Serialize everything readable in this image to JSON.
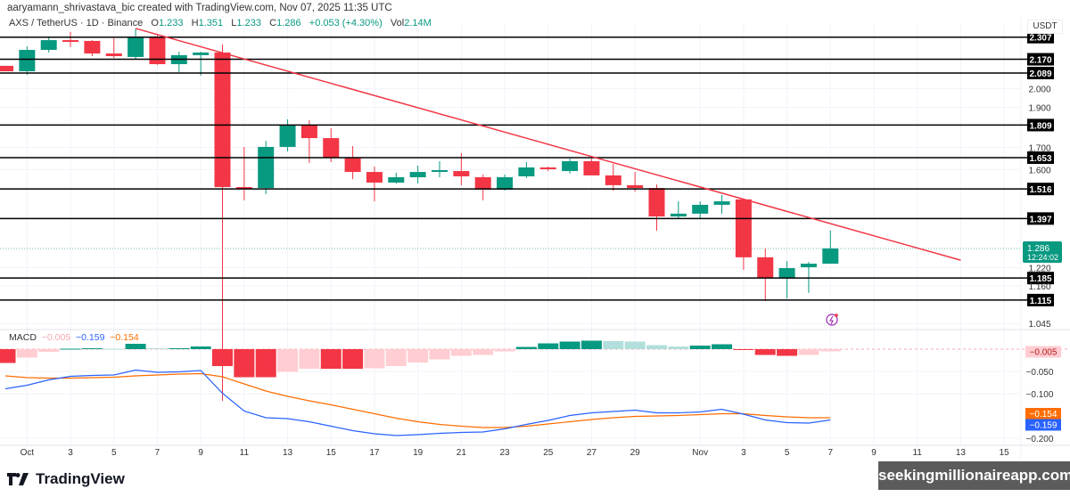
{
  "attribution": "aaryamann_shrivastava_bic created with TradingView.com, Nov 07, 2025 11:35 UTC",
  "legend": {
    "symbol": "AXS / TetherUS · 1D · Binance",
    "o_label": "O",
    "o": "1.233",
    "h_label": "H",
    "h": "1.351",
    "l_label": "L",
    "l": "1.233",
    "c_label": "C",
    "c": "1.286",
    "change": "+0.053 (+4.30%)",
    "vol_label": "Vol",
    "vol": "2.14M"
  },
  "currency": "USDT",
  "current_price": {
    "value": "1.286",
    "countdown": "12:24:02"
  },
  "macd_legend": {
    "label": "MACD",
    "hist": "−0.005",
    "macd": "−0.159",
    "signal": "−0.154"
  },
  "footer": {
    "brand": "TradingView",
    "watermark": "seekingmillionaireapp.com"
  },
  "colors": {
    "up": "#089981",
    "down": "#f23645",
    "up_light": "#b2dfdb",
    "down_light": "#ffcdd2",
    "trendline": "#f23645",
    "macd": "#2962ff",
    "signal": "#ff6d00",
    "level": "#000000"
  },
  "chart_data": [
    {
      "type": "candlestick",
      "scale": "log",
      "dates": [
        "Sep 30",
        "Oct 1",
        "Oct 2",
        "Oct 3",
        "Oct 4",
        "Oct 5",
        "Oct 6",
        "Oct 7",
        "Oct 8",
        "Oct 9",
        "Oct 10",
        "Oct 11",
        "Oct 12",
        "Oct 13",
        "Oct 14",
        "Oct 15",
        "Oct 16",
        "Oct 17",
        "Oct 18",
        "Oct 19",
        "Oct 20",
        "Oct 21",
        "Oct 22",
        "Oct 23",
        "Oct 24",
        "Oct 25",
        "Oct 26",
        "Oct 27",
        "Oct 28",
        "Oct 29",
        "Oct 30",
        "Oct 31",
        "Nov 1",
        "Nov 2",
        "Nov 3",
        "Nov 4",
        "Nov 5",
        "Nov 6",
        "Nov 7"
      ],
      "ohlc": [
        [
          2.131,
          2.131,
          2.099,
          2.099
        ],
        [
          2.099,
          2.249,
          2.079,
          2.227
        ],
        [
          2.227,
          2.311,
          2.211,
          2.288
        ],
        [
          2.288,
          2.34,
          2.244,
          2.283
        ],
        [
          2.283,
          2.288,
          2.189,
          2.205
        ],
        [
          2.205,
          2.3,
          2.178,
          2.189
        ],
        [
          2.184,
          2.363,
          2.168,
          2.311
        ],
        [
          2.311,
          2.328,
          2.136,
          2.141
        ],
        [
          2.141,
          2.216,
          2.094,
          2.195
        ],
        [
          2.195,
          2.216,
          2.074,
          2.211
        ],
        [
          2.211,
          2.26,
          0.844,
          1.524
        ],
        [
          1.524,
          1.703,
          1.469,
          1.52
        ],
        [
          1.52,
          1.732,
          1.495,
          1.703
        ],
        [
          1.703,
          1.838,
          1.682,
          1.811
        ],
        [
          1.811,
          1.834,
          1.629,
          1.745
        ],
        [
          1.745,
          1.793,
          1.633,
          1.653
        ],
        [
          1.653,
          1.707,
          1.558,
          1.589
        ],
        [
          1.589,
          1.613,
          1.465,
          1.543
        ],
        [
          1.543,
          1.586,
          1.539,
          1.566
        ],
        [
          1.566,
          1.617,
          1.539,
          1.589
        ],
        [
          1.593,
          1.637,
          1.566,
          1.597
        ],
        [
          1.593,
          1.674,
          1.532,
          1.57
        ],
        [
          1.566,
          1.578,
          1.469,
          1.513
        ],
        [
          1.513,
          1.578,
          1.509,
          1.566
        ],
        [
          1.57,
          1.633,
          1.562,
          1.609
        ],
        [
          1.609,
          1.613,
          1.593,
          1.601
        ],
        [
          1.593,
          1.649,
          1.582,
          1.637
        ],
        [
          1.637,
          1.649,
          1.574,
          1.574
        ],
        [
          1.574,
          1.625,
          1.509,
          1.532
        ],
        [
          1.532,
          1.589,
          1.505,
          1.52
        ],
        [
          1.52,
          1.535,
          1.351,
          1.405
        ],
        [
          1.405,
          1.465,
          1.398,
          1.416
        ],
        [
          1.416,
          1.465,
          1.398,
          1.451
        ],
        [
          1.451,
          1.491,
          1.416,
          1.465
        ],
        [
          1.473,
          1.473,
          1.212,
          1.255
        ],
        [
          1.255,
          1.286,
          1.112,
          1.186
        ],
        [
          1.186,
          1.242,
          1.12,
          1.218
        ],
        [
          1.221,
          1.239,
          1.137,
          1.233
        ],
        [
          1.233,
          1.351,
          1.233,
          1.286
        ]
      ],
      "levels": [
        "2.307",
        "2.170",
        "2.089",
        "1.809",
        "1.653",
        "1.516",
        "1.397",
        "1.185",
        "1.115"
      ],
      "trendline": {
        "from": {
          "date": "Oct 6",
          "price": 2.363
        },
        "to": {
          "date": "Nov 13",
          "price": 1.245
        }
      },
      "y_ticks": [
        "2.000",
        "1.900",
        "1.700",
        "1.600",
        "1.220",
        "1.160",
        "1.045"
      ],
      "x_ticks": [
        {
          "label": "Oct",
          "date": "Oct 1"
        },
        {
          "label": "3",
          "date": "Oct 3"
        },
        {
          "label": "5",
          "date": "Oct 5"
        },
        {
          "label": "7",
          "date": "Oct 7"
        },
        {
          "label": "9",
          "date": "Oct 9"
        },
        {
          "label": "11",
          "date": "Oct 11"
        },
        {
          "label": "13",
          "date": "Oct 13"
        },
        {
          "label": "15",
          "date": "Oct 15"
        },
        {
          "label": "17",
          "date": "Oct 17"
        },
        {
          "label": "19",
          "date": "Oct 19"
        },
        {
          "label": "21",
          "date": "Oct 21"
        },
        {
          "label": "23",
          "date": "Oct 23"
        },
        {
          "label": "25",
          "date": "Oct 25"
        },
        {
          "label": "27",
          "date": "Oct 27"
        },
        {
          "label": "29",
          "date": "Oct 29"
        },
        {
          "label": "Nov",
          "date": "Nov 1"
        },
        {
          "label": "3",
          "date": "Nov 3"
        },
        {
          "label": "5",
          "date": "Nov 5"
        },
        {
          "label": "7",
          "date": "Nov 7"
        },
        {
          "label": "9",
          "date": "Nov 9"
        },
        {
          "label": "11",
          "date": "Nov 11"
        },
        {
          "label": "13",
          "date": "Nov 13"
        },
        {
          "label": "15",
          "date": "Nov 15"
        }
      ]
    },
    {
      "type": "macd",
      "histogram": [
        -0.031,
        -0.019,
        -0.006,
        0.001,
        0.002,
        0.001,
        0.012,
        0.002,
        0.002,
        0.006,
        -0.038,
        -0.063,
        -0.063,
        -0.051,
        -0.044,
        -0.044,
        -0.044,
        -0.043,
        -0.038,
        -0.03,
        -0.023,
        -0.015,
        -0.013,
        -0.005,
        0.005,
        0.013,
        0.017,
        0.019,
        0.018,
        0.017,
        0.009,
        0.006,
        0.008,
        0.011,
        -0.002,
        -0.013,
        -0.015,
        -0.013,
        -0.005
      ],
      "macd": [
        -0.089,
        -0.081,
        -0.069,
        -0.061,
        -0.059,
        -0.058,
        -0.047,
        -0.052,
        -0.051,
        -0.048,
        -0.099,
        -0.139,
        -0.154,
        -0.156,
        -0.163,
        -0.173,
        -0.183,
        -0.19,
        -0.194,
        -0.192,
        -0.189,
        -0.187,
        -0.186,
        -0.179,
        -0.169,
        -0.16,
        -0.149,
        -0.143,
        -0.14,
        -0.137,
        -0.143,
        -0.143,
        -0.141,
        -0.135,
        -0.146,
        -0.159,
        -0.165,
        -0.166,
        -0.159
      ],
      "signal": [
        -0.06,
        -0.064,
        -0.065,
        -0.065,
        -0.064,
        -0.063,
        -0.06,
        -0.058,
        -0.056,
        -0.055,
        -0.062,
        -0.078,
        -0.094,
        -0.106,
        -0.116,
        -0.125,
        -0.135,
        -0.145,
        -0.155,
        -0.163,
        -0.169,
        -0.173,
        -0.176,
        -0.176,
        -0.173,
        -0.168,
        -0.163,
        -0.158,
        -0.154,
        -0.151,
        -0.15,
        -0.149,
        -0.147,
        -0.145,
        -0.145,
        -0.149,
        -0.152,
        -0.154,
        -0.154
      ],
      "y_ticks": [
        "−0.050",
        "−0.100",
        "−0.200"
      ],
      "labels": {
        "hist": "−0.005",
        "signal": "−0.154",
        "macd": "−0.159"
      }
    }
  ]
}
